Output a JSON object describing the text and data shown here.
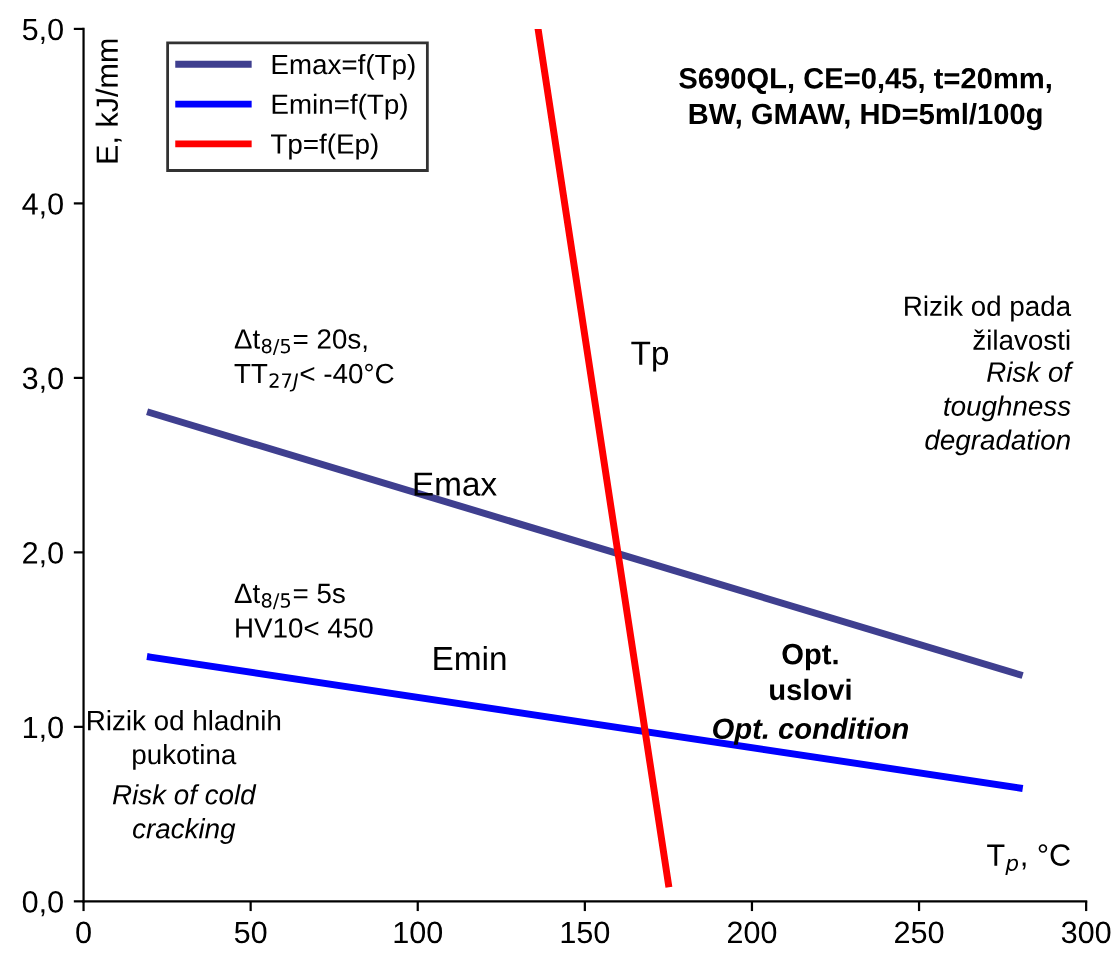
{
  "chart_data": {
    "type": "line",
    "xlabel": "T$_{p}$, °C",
    "ylabel": "E, kJ/mm",
    "series": [
      {
        "name": "Emax=f(Tp)",
        "color": "#3f3f8f",
        "x": [
          20,
          280
        ],
        "values": [
          2.8,
          1.3
        ]
      },
      {
        "name": "Emin=f(Tp)",
        "color": "#0000ff",
        "x": [
          20,
          280
        ],
        "values": [
          1.4,
          0.65
        ]
      },
      {
        "name": "Tp=f(Ep)",
        "color": "#ff0000",
        "x": [
          136,
          175
        ],
        "values": [
          5.0,
          0.1
        ]
      }
    ],
    "xlim": [
      0,
      300
    ],
    "xticks": [
      0,
      50,
      100,
      150,
      200,
      250,
      300
    ],
    "ylim": [
      0,
      5
    ],
    "yticks": [
      {
        "value": 0,
        "label": "0,0"
      },
      {
        "value": 1,
        "label": "1,0"
      },
      {
        "value": 2,
        "label": "2,0"
      },
      {
        "value": 3,
        "label": "3,0"
      },
      {
        "value": 4,
        "label": "4,0"
      },
      {
        "value": 5,
        "label": "5,0"
      }
    ],
    "grid": false,
    "legend": "top left",
    "marker": "none",
    "line_style": "solid",
    "annotations": [
      "S690QL, CE=0,45, t=20mm,\nBW, GMAW, HD=5ml/100g",
      "Rizik od pada\nžilavosti",
      "Risk of\ntoughness\ndegradation",
      "Δt$_{8/5}$= 20s,\nTT$_{27J}$< -40°C",
      "Δt$_{8/5}$= 5s\nHV10< 450",
      "Opt.\nuslovi",
      "Opt. condition",
      "Rizik od hladnih\npukotina",
      "Risk of cold\ncracking",
      "Emax",
      "Emin",
      "Tp"
    ]
  }
}
